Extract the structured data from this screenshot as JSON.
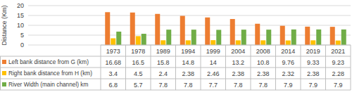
{
  "chart_data": {
    "type": "bar",
    "y_label": "Distance (Km)",
    "categories": [
      "1973",
      "1978",
      "1989",
      "1994",
      "1999",
      "2004",
      "2008",
      "2014",
      "2019",
      "2021"
    ],
    "series": [
      {
        "name": "Left bank distance from G (km)",
        "color": "#ED7D31",
        "values": [
          16.68,
          16.5,
          15.8,
          14.8,
          14,
          13.2,
          10.8,
          9.76,
          9.33,
          9.23
        ]
      },
      {
        "name": "Right bank distance from H (km)",
        "color": "#FFC000",
        "values": [
          3.4,
          4.5,
          2.4,
          2.38,
          2.46,
          2.38,
          2.38,
          2.32,
          2.38,
          2.28
        ]
      },
      {
        "name": "River Width (main channel) km",
        "color": "#70AD47",
        "values": [
          6.8,
          5.7,
          7.8,
          7.8,
          7.7,
          7.8,
          7.8,
          7.9,
          7.9,
          7.9
        ]
      }
    ],
    "ylim": [
      0,
      20
    ],
    "yticks": [
      0,
      5,
      10,
      15,
      20
    ],
    "grid": true
  }
}
